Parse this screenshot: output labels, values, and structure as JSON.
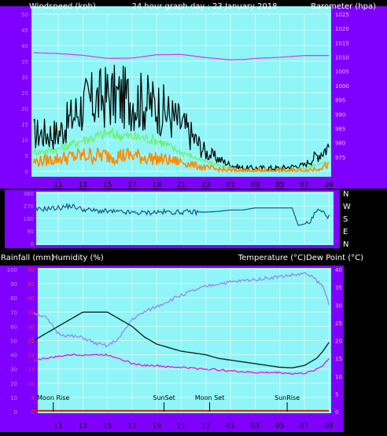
{
  "header": {
    "left": "Windspeed (kph)",
    "center": "24 hour graph day : 23 January 2018",
    "right": "Barometer (hpa)"
  },
  "time_axis": [
    "11",
    "13",
    "15",
    "17",
    "19",
    "21",
    "23",
    "01",
    "03",
    "05",
    "07",
    "09"
  ],
  "direction_labels": [
    "N",
    "W",
    "S",
    "E",
    "N"
  ],
  "lower_header": {
    "left1": "Rainfall (mm)",
    "left2": "Humidity (%)",
    "right": "Temperature (°C)Dew Point (°C)"
  },
  "markers": [
    {
      "label": "Moon Rise",
      "t": 1.6
    },
    {
      "label": "SunSet",
      "t": 10.6
    },
    {
      "label": "Moon Set",
      "t": 14.3
    },
    {
      "label": "SunRise",
      "t": 20.6
    }
  ],
  "colors": {
    "panel_bg": "#8ff5f7",
    "frame": "#8000ff",
    "grid": "#d0f8f8",
    "wind": "#000000",
    "gust_avg": "#70f070",
    "wind_avg": "#ff8a00",
    "barometer": "#e040e0",
    "direction": "#1f4f88",
    "temperature": "#0f2a2a",
    "humidity": "#9090ee",
    "dewpoint": "#e020e0",
    "rain": "#cc2200",
    "left_tick": "#c080ff",
    "rain_tick": "#ff3030",
    "right_tick": "#ffb0ff",
    "label_text": "#ffffff"
  },
  "chart_data": [
    {
      "type": "line",
      "name": "wind-barometer",
      "x_unit": "hours since 09:00",
      "x": [
        0,
        2,
        4,
        6,
        8,
        10,
        12,
        14,
        16,
        17,
        18,
        20,
        22,
        24
      ],
      "ylim_left": [
        0,
        50
      ],
      "yticks_left": [
        0,
        5,
        10,
        15,
        20,
        25,
        30,
        35,
        40,
        45,
        50
      ],
      "ylim_right": [
        970,
        1025
      ],
      "yticks_right": [
        975,
        980,
        985,
        990,
        995,
        1000,
        1005,
        1010,
        1015,
        1020,
        1025
      ],
      "series": [
        {
          "name": "",
          "axis": "left",
          "color": "wind",
          "values": [
            12,
            12,
            21,
            24,
            23,
            21,
            15,
            6,
            2,
            1,
            1,
            1,
            2,
            8
          ]
        },
        {
          "name": "",
          "axis": "left",
          "color": "gust_avg",
          "values": [
            6,
            7,
            10,
            12,
            11,
            10,
            6,
            3,
            1,
            0,
            0,
            0,
            1,
            3
          ]
        },
        {
          "name": "",
          "axis": "left",
          "color": "wind_avg",
          "values": [
            3,
            4,
            5,
            5,
            5,
            4,
            3,
            1,
            0,
            0,
            0,
            0,
            0,
            2
          ]
        },
        {
          "name": "",
          "axis": "right",
          "color": "barometer",
          "values": [
            1011.5,
            1011.2,
            1010.6,
            1009.5,
            1009.6,
            1010.8,
            1010.9,
            1009.8,
            1009.0,
            1009.1,
            1009.5,
            1009.9,
            1010.5,
            1010.5
          ]
        }
      ]
    },
    {
      "type": "line",
      "name": "wind-direction",
      "x_unit": "hours since 09:00",
      "x": [
        0,
        1,
        2,
        3,
        4,
        5,
        6,
        7,
        8,
        9,
        10,
        11,
        12,
        13,
        14,
        15,
        16,
        17,
        18,
        19,
        20,
        21,
        21.5,
        22,
        22.5,
        23,
        23.5,
        24
      ],
      "ylim": [
        0,
        360
      ],
      "yticks": [
        0,
        90,
        180,
        270,
        360
      ],
      "series": [
        {
          "name": "",
          "color": "direction",
          "values": [
            240,
            250,
            255,
            270,
            245,
            235,
            230,
            225,
            220,
            220,
            225,
            225,
            225,
            225,
            225,
            230,
            240,
            240,
            255,
            255,
            255,
            255,
            130,
            140,
            160,
            240,
            225,
            190
          ]
        }
      ]
    },
    {
      "type": "line",
      "name": "rain-humidity-temperature",
      "x_unit": "hours since 09:00",
      "x": [
        0,
        1,
        2,
        3,
        4,
        5,
        6,
        7,
        8,
        9,
        10,
        11,
        12,
        13,
        14,
        15,
        16,
        17,
        18,
        19,
        20,
        21,
        22,
        22.5,
        23,
        23.5,
        24
      ],
      "ylim_humidity": [
        0,
        100
      ],
      "yticks_humidity": [
        0,
        10,
        20,
        30,
        40,
        50,
        60,
        70,
        80,
        90,
        100
      ],
      "ylim_rain": [
        0,
        50
      ],
      "yticks_rain": [
        0,
        5,
        10,
        15,
        20,
        25,
        30,
        35,
        40,
        45,
        50
      ],
      "ylim_temp": [
        0,
        40
      ],
      "yticks_temp": [
        0,
        5,
        10,
        15,
        20,
        25,
        30,
        35,
        40
      ],
      "series": [
        {
          "name": "",
          "axis": "humidity",
          "color": "humidity",
          "values": [
            70,
            66,
            55,
            53,
            52,
            48,
            46,
            52,
            65,
            70,
            74,
            78,
            82,
            85,
            88,
            90,
            91,
            92,
            93,
            94,
            95,
            96,
            97,
            96,
            92,
            88,
            76
          ]
        },
        {
          "name": "",
          "axis": "temp",
          "color": "temperature",
          "values": [
            20,
            22,
            24,
            26,
            28,
            28,
            28,
            26,
            24,
            21,
            19,
            18,
            17,
            16.5,
            16,
            15,
            14.5,
            14,
            13.5,
            13,
            12.5,
            12.3,
            13,
            14,
            15,
            17,
            19.5
          ]
        },
        {
          "name": "",
          "axis": "temp",
          "color": "dewpoint",
          "values": [
            14.5,
            15,
            15.5,
            16,
            16,
            16,
            16,
            15,
            13.5,
            13,
            13,
            12.5,
            12.5,
            12.2,
            12,
            11.8,
            11.5,
            11.2,
            11,
            11,
            11,
            10.7,
            10.8,
            11.2,
            12,
            13,
            15
          ]
        },
        {
          "name": "",
          "axis": "rain",
          "color": "rain",
          "values": [
            0.3,
            0.3,
            0.3,
            0.3,
            0.3,
            0.3,
            0.3,
            0.3,
            0.3,
            0.3,
            0.3,
            0.3,
            0.3,
            0.3,
            0.3,
            0.3,
            0.3,
            0.3,
            0.3,
            0.3,
            0.3,
            0.3,
            0.3,
            0.3,
            0.3,
            0.3,
            0.3
          ]
        }
      ]
    }
  ]
}
